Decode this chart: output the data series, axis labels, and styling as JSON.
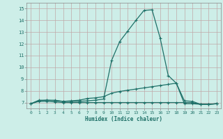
{
  "title": "",
  "xlabel": "Humidex (Indice chaleur)",
  "ylabel": "",
  "bg_color": "#cdeee8",
  "grid_color": "#c0a8a8",
  "line_color": "#1e7068",
  "xlim": [
    -0.5,
    23.5
  ],
  "ylim": [
    6.5,
    15.5
  ],
  "yticks": [
    7,
    8,
    9,
    10,
    11,
    12,
    13,
    14,
    15
  ],
  "xticks": [
    0,
    1,
    2,
    3,
    4,
    5,
    6,
    7,
    8,
    9,
    10,
    11,
    12,
    13,
    14,
    15,
    16,
    17,
    18,
    19,
    20,
    21,
    22,
    23
  ],
  "series": [
    {
      "x": [
        0,
        1,
        2,
        3,
        4,
        5,
        6,
        7,
        8,
        9,
        10,
        11,
        12,
        13,
        14,
        15,
        16,
        17,
        18,
        19,
        20,
        21,
        22,
        23
      ],
      "y": [
        6.9,
        7.2,
        7.2,
        7.15,
        7.1,
        7.1,
        7.1,
        7.15,
        7.2,
        7.3,
        10.6,
        12.2,
        13.1,
        14.0,
        14.85,
        14.9,
        12.5,
        9.3,
        8.65,
        6.9,
        6.9,
        6.85,
        6.85,
        6.9
      ]
    },
    {
      "x": [
        0,
        1,
        2,
        3,
        4,
        5,
        6,
        7,
        8,
        9,
        10,
        11,
        12,
        13,
        14,
        15,
        16,
        17,
        18,
        19,
        20,
        21,
        22,
        23
      ],
      "y": [
        6.9,
        7.15,
        7.2,
        7.2,
        7.1,
        7.15,
        7.2,
        7.35,
        7.4,
        7.5,
        7.8,
        7.95,
        8.05,
        8.15,
        8.25,
        8.35,
        8.45,
        8.55,
        8.65,
        7.15,
        7.1,
        6.85,
        6.85,
        6.9
      ]
    },
    {
      "x": [
        0,
        1,
        2,
        3,
        4,
        5,
        6,
        7,
        8,
        9,
        10,
        11,
        12,
        13,
        14,
        15,
        16,
        17,
        18,
        19,
        20,
        21,
        22,
        23
      ],
      "y": [
        6.9,
        7.1,
        7.1,
        7.05,
        7.0,
        7.0,
        7.0,
        7.0,
        7.0,
        7.0,
        7.0,
        7.0,
        7.0,
        7.0,
        7.0,
        7.0,
        7.0,
        7.0,
        7.0,
        7.0,
        7.0,
        6.85,
        6.85,
        6.9
      ]
    }
  ]
}
